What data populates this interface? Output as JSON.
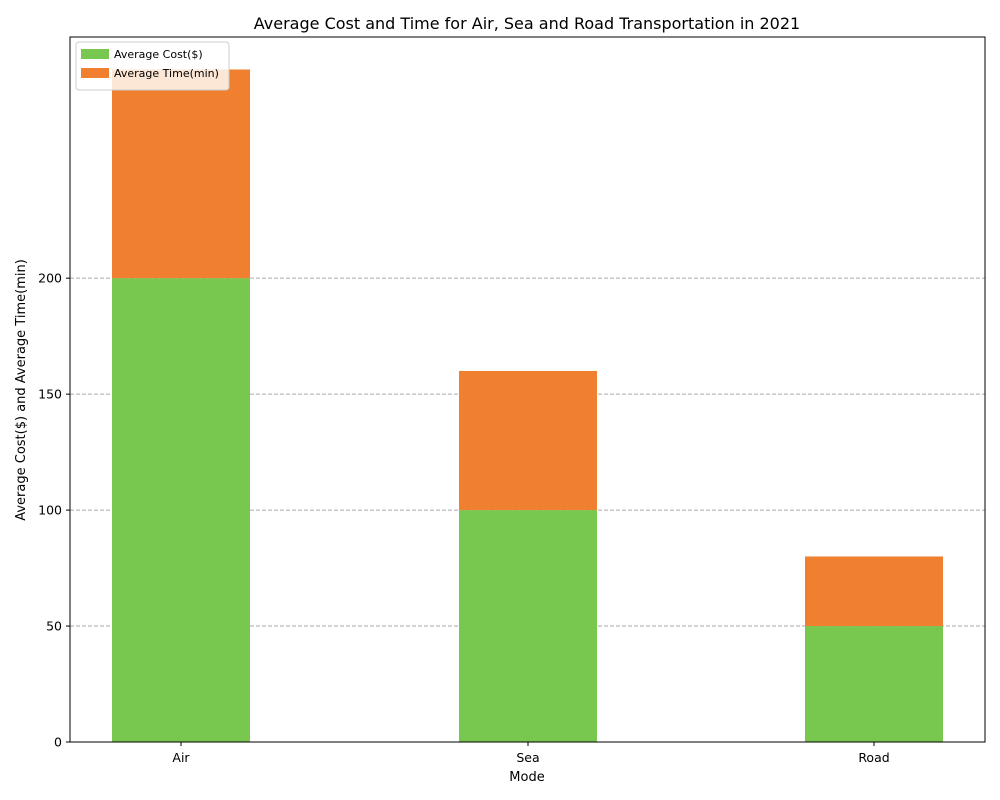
{
  "chart_data": {
    "type": "bar",
    "stacked": true,
    "title": "Average Cost and Time for Air, Sea and Road Transportation in 2021",
    "xlabel": "Mode",
    "ylabel": "Average Cost($) and Average Time(min)",
    "categories": [
      "Air",
      "Sea",
      "Road"
    ],
    "series": [
      {
        "name": "Average Cost($)",
        "values": [
          200,
          100,
          50
        ],
        "color": "#78c850"
      },
      {
        "name": "Average Time(min)",
        "values": [
          90,
          60,
          30
        ],
        "color": "#f08030"
      }
    ],
    "ylim": [
      0,
      304
    ],
    "yticks": [
      0,
      50,
      100,
      150,
      200
    ],
    "grid": "horizontal-dashed",
    "legend_position": "top-left"
  }
}
